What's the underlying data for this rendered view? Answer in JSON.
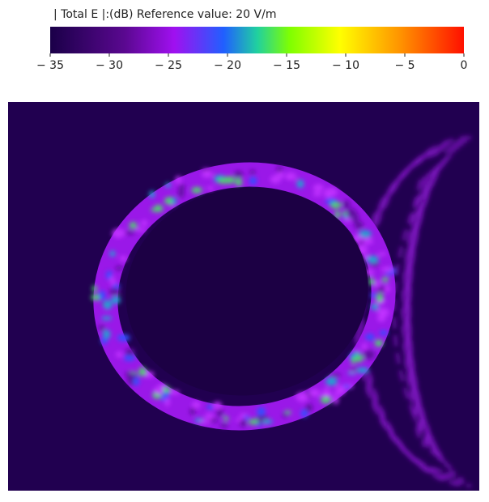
{
  "colorbar": {
    "title": "| Total E |:(dB) Reference value: 20 V/m",
    "range": [
      -35,
      0
    ],
    "ticks": [
      {
        "value": -35,
        "label": "− 35"
      },
      {
        "value": -30,
        "label": "− 30"
      },
      {
        "value": -25,
        "label": "− 25"
      },
      {
        "value": -20,
        "label": "− 20"
      },
      {
        "value": -15,
        "label": "− 15"
      },
      {
        "value": -10,
        "label": "− 10"
      },
      {
        "value": -5,
        "label": "− 5"
      },
      0
    ]
  }
}
